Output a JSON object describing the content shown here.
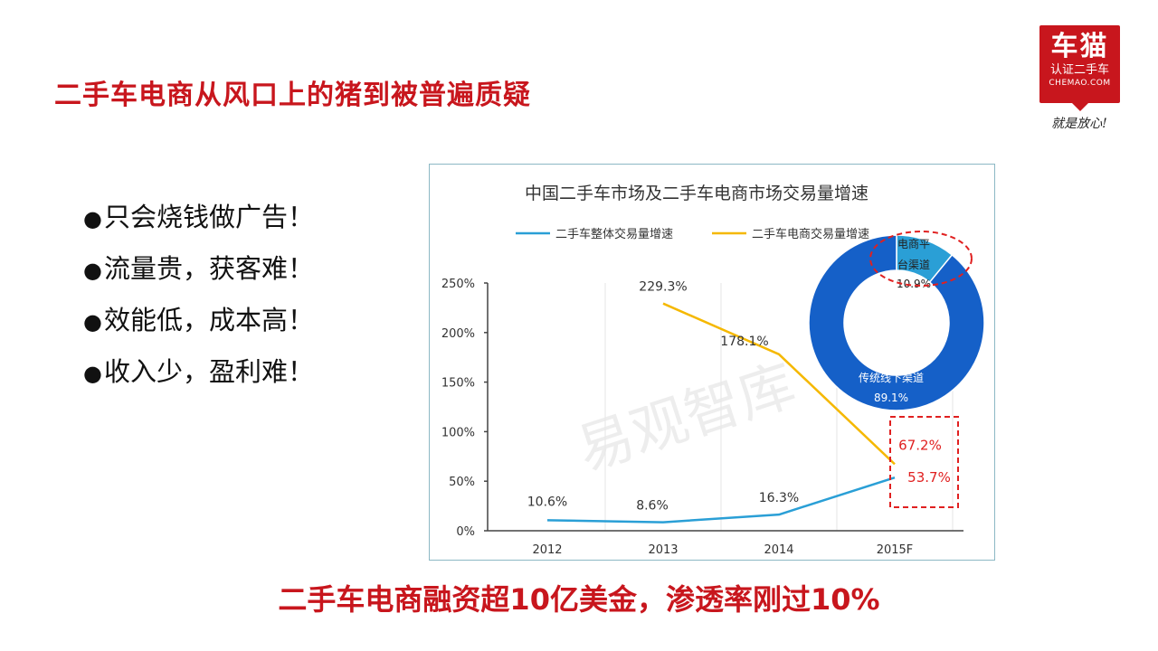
{
  "slide": {
    "title": "二手车电商从风口上的猪到被普遍质疑",
    "bullets": [
      "只会烧钱做广告！",
      "流量贵，获客难！",
      "效能低，成本高！",
      "收入少，盈利难！"
    ],
    "bullet_glyph": "●",
    "footer": "二手车电商融资超10亿美金，渗透率刚过10%"
  },
  "logo": {
    "brand": "车猫",
    "subtitle": "认证二手车",
    "domain": "CHEMAO.COM",
    "slogan": "就是放心!",
    "color": "#c8161d"
  },
  "chart_data": [
    {
      "type": "line",
      "title": "中国二手车市场及二手车电商市场交易量增速",
      "categories": [
        "2012",
        "2013",
        "2014",
        "2015F"
      ],
      "series": [
        {
          "name": "二手车整体交易量增速",
          "color": "#2a9fd6",
          "values": [
            10.6,
            8.6,
            16.3,
            53.7
          ],
          "labels": [
            "10.6%",
            "8.6%",
            "16.3%",
            "53.7%"
          ]
        },
        {
          "name": "二手车电商交易量增速",
          "color": "#f5b800",
          "values": [
            null,
            229.3,
            178.1,
            67.2
          ],
          "labels": [
            "",
            "229.3%",
            "178.1%",
            "67.2%"
          ]
        }
      ],
      "y_ticks": [
        "0%",
        "50%",
        "100%",
        "150%",
        "200%",
        "250%"
      ],
      "ylim": [
        0,
        250
      ],
      "legend": "top",
      "watermark": "易观智库",
      "highlight_color": "#e02020"
    },
    {
      "type": "pie",
      "style": "donut",
      "slices": [
        {
          "label": "电商平台渠道",
          "label_line1": "电商平",
          "label_line2": "台渠道",
          "value": 10.9,
          "value_label": "10.9%",
          "color": "#2a9fd6"
        },
        {
          "label": "传统线下渠道",
          "value": 89.1,
          "value_label": "89.1%",
          "color": "#1560c8"
        }
      ]
    }
  ]
}
